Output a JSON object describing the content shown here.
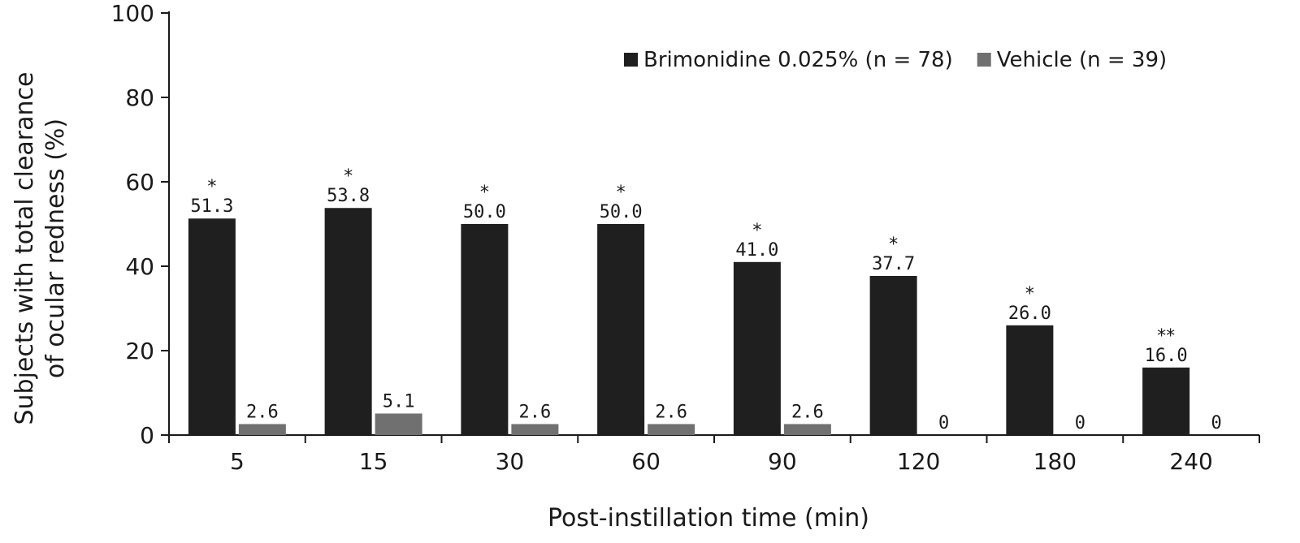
{
  "chart_data": {
    "type": "bar",
    "xlabel": "Post-instillation time (min)",
    "ylabel_lines": [
      "Subjects with total clearance",
      "of ocular redness (%)"
    ],
    "ylim": [
      0,
      100
    ],
    "yticks": [
      "0",
      "20",
      "40",
      "60",
      "80",
      "100"
    ],
    "categories": [
      "5",
      "15",
      "30",
      "60",
      "90",
      "120",
      "180",
      "240"
    ],
    "legend_position": "top-right",
    "series": [
      {
        "name": "Brimonidine 0.025% (n = 78)",
        "color": "#1f1f1f",
        "values": [
          51.3,
          53.8,
          50.0,
          50.0,
          41.0,
          37.7,
          26.0,
          16.0
        ],
        "labels": [
          "51.3",
          "53.8",
          "50.0",
          "50.0",
          "41.0",
          "37.7",
          "26.0",
          "16.0"
        ],
        "significance": [
          "*",
          "*",
          "*",
          "*",
          "*",
          "*",
          "*",
          "**"
        ]
      },
      {
        "name": "Vehicle (n = 39)",
        "color": "#707070",
        "values": [
          2.6,
          5.1,
          2.6,
          2.6,
          2.6,
          0,
          0,
          0
        ],
        "labels": [
          "2.6",
          "5.1",
          "2.6",
          "2.6",
          "2.6",
          "0",
          "0",
          "0"
        ]
      }
    ]
  }
}
